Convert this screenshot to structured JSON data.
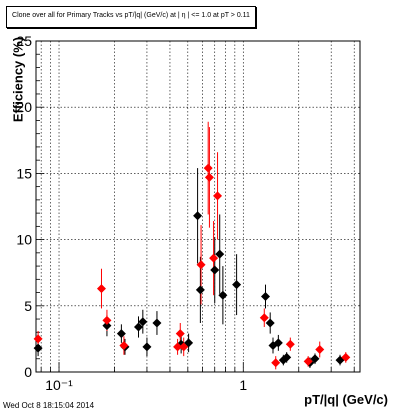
{
  "title": "Clone  over all  for  Primary Tracks vs pT/|q| (GeV/c) at |  η | <= 1.0 at pT > 0.11",
  "timestamp": "Wed Oct  8 18:15:04 2014",
  "colors": {
    "red": "#ff0000",
    "black": "#000000",
    "grid": "#000000"
  },
  "chart_data": {
    "type": "scatter",
    "title": "Clone  over all  for  Primary Tracks vs pT/|q| (GeV/c) at |  η | <= 1.0 at pT > 0.11",
    "xlabel": "pT/|q| (GeV/c)",
    "ylabel": "Efficiency (%)",
    "xscale": "log",
    "xlim": [
      0.075,
      4.3
    ],
    "ylim": [
      0,
      25
    ],
    "yticks": [
      0,
      5,
      10,
      15,
      20,
      25
    ],
    "xtick_labels": [
      "10⁻¹",
      "1"
    ],
    "grid": true,
    "series": [
      {
        "color": "red",
        "points": [
          {
            "x": 0.077,
            "y": 2.5,
            "err": 0.6
          },
          {
            "x": 0.17,
            "y": 6.3,
            "err": 1.5
          },
          {
            "x": 0.182,
            "y": 3.9,
            "err": 0.8
          },
          {
            "x": 0.225,
            "y": 2.0,
            "err": 0.7
          },
          {
            "x": 0.44,
            "y": 1.9,
            "err": 0.6
          },
          {
            "x": 0.455,
            "y": 2.9,
            "err": 0.8
          },
          {
            "x": 0.475,
            "y": 1.9,
            "err": 0.7
          },
          {
            "x": 0.59,
            "y": 8.1,
            "err": 3.0
          },
          {
            "x": 0.645,
            "y": 15.4,
            "err": 3.5
          },
          {
            "x": 0.655,
            "y": 14.7,
            "err": 3.8
          },
          {
            "x": 0.69,
            "y": 8.6,
            "err": 2.8
          },
          {
            "x": 0.725,
            "y": 13.3,
            "err": 3.3
          },
          {
            "x": 1.3,
            "y": 4.1,
            "err": 0.7
          },
          {
            "x": 1.5,
            "y": 0.7,
            "err": 0.5
          },
          {
            "x": 1.8,
            "y": 2.1,
            "err": 0.5
          },
          {
            "x": 2.25,
            "y": 0.8,
            "err": 0.4
          },
          {
            "x": 2.6,
            "y": 1.7,
            "err": 0.6
          },
          {
            "x": 3.6,
            "y": 1.1,
            "err": 0.4
          }
        ]
      },
      {
        "color": "black",
        "points": [
          {
            "x": 0.077,
            "y": 1.8,
            "err": 0.6
          },
          {
            "x": 0.182,
            "y": 3.5,
            "err": 0.8
          },
          {
            "x": 0.218,
            "y": 2.9,
            "err": 0.7
          },
          {
            "x": 0.228,
            "y": 1.9,
            "err": 0.6
          },
          {
            "x": 0.27,
            "y": 3.4,
            "err": 0.8
          },
          {
            "x": 0.285,
            "y": 3.8,
            "err": 0.9
          },
          {
            "x": 0.3,
            "y": 1.9,
            "err": 0.7
          },
          {
            "x": 0.34,
            "y": 3.7,
            "err": 0.9
          },
          {
            "x": 0.46,
            "y": 2.1,
            "err": 0.7
          },
          {
            "x": 0.505,
            "y": 2.2,
            "err": 0.7
          },
          {
            "x": 0.565,
            "y": 11.8,
            "err": 3.6
          },
          {
            "x": 0.585,
            "y": 6.2,
            "err": 2.5
          },
          {
            "x": 0.7,
            "y": 7.7,
            "err": 2.5
          },
          {
            "x": 0.745,
            "y": 8.9,
            "err": 3.0
          },
          {
            "x": 0.775,
            "y": 5.8,
            "err": 2.2
          },
          {
            "x": 0.92,
            "y": 6.6,
            "err": 2.3
          },
          {
            "x": 1.32,
            "y": 5.7,
            "err": 0.9
          },
          {
            "x": 1.4,
            "y": 3.7,
            "err": 0.8
          },
          {
            "x": 1.45,
            "y": 2.0,
            "err": 0.6
          },
          {
            "x": 1.55,
            "y": 2.2,
            "err": 0.6
          },
          {
            "x": 1.65,
            "y": 0.9,
            "err": 0.4
          },
          {
            "x": 1.72,
            "y": 1.1,
            "err": 0.4
          },
          {
            "x": 2.3,
            "y": 0.7,
            "err": 0.4
          },
          {
            "x": 2.45,
            "y": 1.0,
            "err": 0.4
          },
          {
            "x": 3.35,
            "y": 0.9,
            "err": 0.4
          }
        ]
      }
    ]
  }
}
